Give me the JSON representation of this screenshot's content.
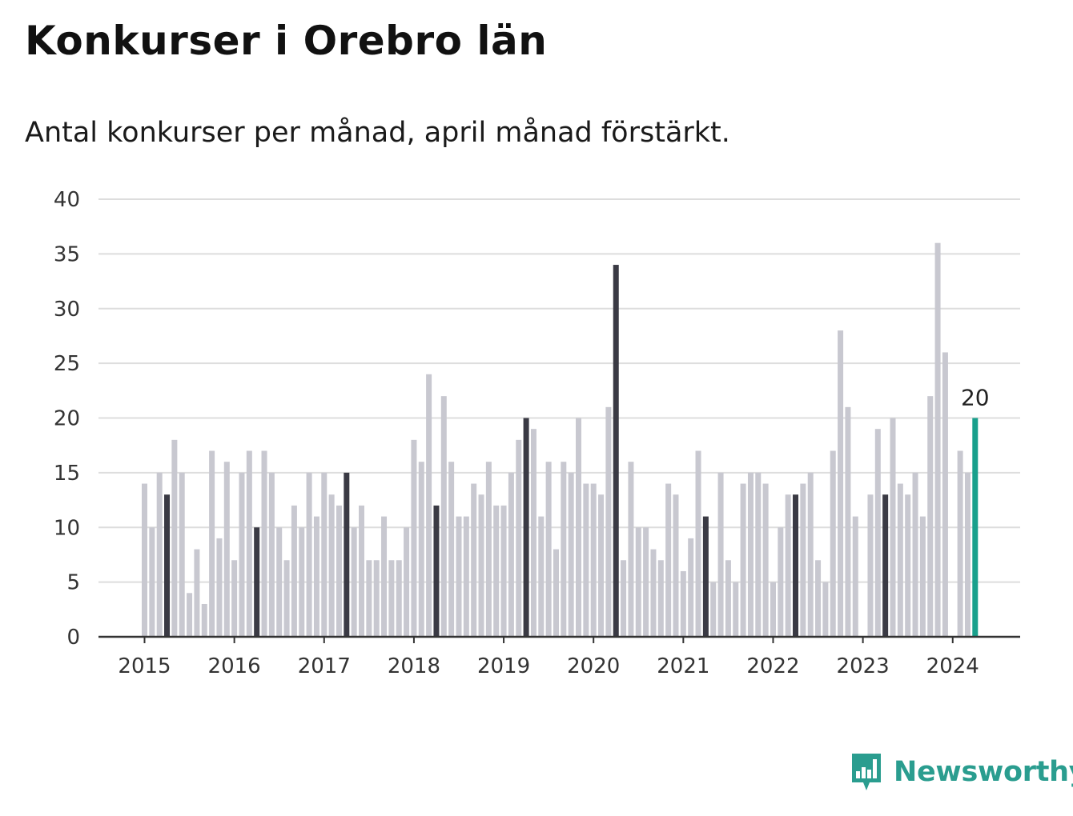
{
  "title": "Konkurser i Orebro län",
  "subtitle": "Antal konkurser per månad, april månad förstärkt.",
  "brand": {
    "name": "Newsworthy",
    "icon": "bar-chart-speech-bubble-icon",
    "color": "#2a9d8f"
  },
  "colors": {
    "regular": "#c8c8d0",
    "april": "#3a3a44",
    "latest": "#19a08c",
    "grid": "#dddddd",
    "axis": "#333333"
  },
  "chart_data": {
    "type": "bar",
    "title": "Konkurser i Orebro län",
    "subtitle": "Antal konkurser per månad, april månad förstärkt.",
    "xlabel": "",
    "ylabel": "",
    "ylim": [
      0,
      40
    ],
    "yticks": [
      0,
      5,
      10,
      15,
      20,
      25,
      30,
      35,
      40
    ],
    "xticks": [
      "2015",
      "2016",
      "2017",
      "2018",
      "2019",
      "2020",
      "2021",
      "2022",
      "2023",
      "2024"
    ],
    "start": "2015-01",
    "highlight": "april",
    "grid": true,
    "values": [
      14,
      10,
      15,
      13,
      18,
      15,
      4,
      8,
      3,
      17,
      9,
      16,
      7,
      15,
      17,
      10,
      17,
      15,
      10,
      7,
      12,
      10,
      15,
      11,
      15,
      13,
      12,
      15,
      10,
      12,
      7,
      7,
      11,
      7,
      7,
      10,
      18,
      16,
      24,
      12,
      22,
      16,
      11,
      11,
      14,
      13,
      16,
      12,
      12,
      15,
      18,
      20,
      19,
      11,
      16,
      8,
      16,
      15,
      20,
      14,
      14,
      13,
      21,
      34,
      7,
      16,
      10,
      10,
      8,
      7,
      14,
      13,
      6,
      9,
      17,
      11,
      5,
      15,
      7,
      5,
      14,
      15,
      15,
      14,
      5,
      10,
      13,
      13,
      14,
      15,
      7,
      5,
      17,
      28,
      21,
      11,
      0,
      13,
      19,
      13,
      20,
      14,
      13,
      15,
      11,
      22,
      36,
      26,
      0,
      17,
      15,
      20
    ],
    "annotations": [
      {
        "month": "2024-04",
        "value": 20,
        "text": "20"
      }
    ]
  }
}
